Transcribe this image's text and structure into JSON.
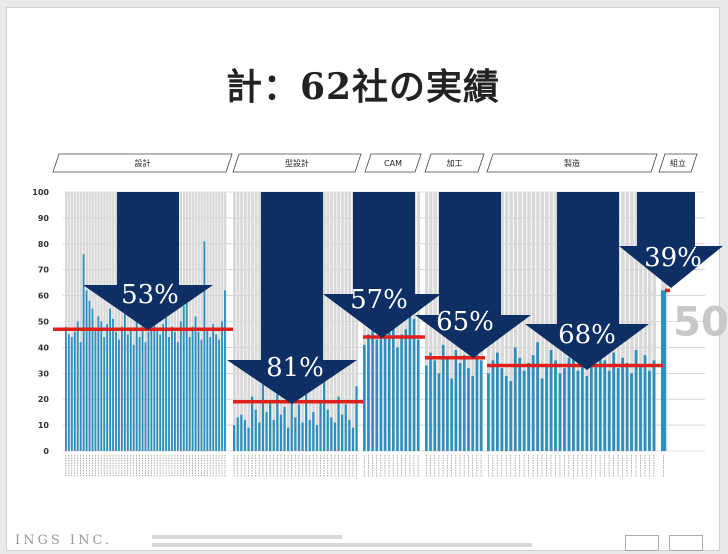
{
  "slide": {
    "title": "計：62社の実績",
    "logo": "INGS INC."
  },
  "colors": {
    "bar": "#2d8fbe",
    "arrow": "#0e2f63",
    "median_line": "#e0201a",
    "stripe": "#d8d8d8"
  },
  "chart_data": {
    "type": "bar",
    "ylim": [
      0,
      100
    ],
    "yticks": [
      0,
      10,
      20,
      30,
      40,
      50,
      60,
      70,
      80,
      90,
      100
    ],
    "right_label": "50",
    "groups": [
      {
        "name": "設計",
        "percent": "53%",
        "line_value": 47,
        "values": [
          48,
          45,
          44,
          46,
          50,
          42,
          76,
          62,
          58,
          55,
          47,
          52,
          50,
          44,
          49,
          55,
          51,
          46,
          43,
          48,
          53,
          45,
          47,
          41,
          60,
          44,
          50,
          42,
          46,
          48,
          52,
          47,
          45,
          49,
          53,
          44,
          48,
          46,
          42,
          50,
          56,
          58,
          44,
          48,
          52,
          46,
          43,
          81,
          47,
          44,
          49,
          45,
          43,
          50,
          62
        ]
      },
      {
        "name": "型設計",
        "percent": "81%",
        "line_value": 19,
        "values": [
          10,
          13,
          14,
          12,
          9,
          21,
          16,
          11,
          26,
          15,
          19,
          12,
          22,
          14,
          17,
          9,
          20,
          13,
          18,
          11,
          24,
          12,
          15,
          10,
          19,
          27,
          16,
          13,
          11,
          21,
          14,
          18,
          12,
          9,
          25
        ]
      },
      {
        "name": "CAM",
        "percent": "57%",
        "line_value": 44,
        "values": [
          41,
          45,
          50,
          43,
          48,
          44,
          49,
          52,
          40,
          45,
          47,
          55,
          51,
          43
        ]
      },
      {
        "name": "加工",
        "percent": "65%",
        "line_value": 36,
        "values": [
          33,
          38,
          35,
          30,
          41,
          36,
          28,
          39,
          34,
          37,
          32,
          29,
          38,
          35
        ]
      },
      {
        "name": "製造",
        "percent": "68%",
        "line_value": 33,
        "values": [
          30,
          35,
          38,
          32,
          29,
          27,
          40,
          36,
          31,
          34,
          37,
          42,
          28,
          33,
          39,
          35,
          30,
          32,
          36,
          38,
          31,
          34,
          29,
          37,
          33,
          40,
          35,
          31,
          38,
          32,
          36,
          34,
          30,
          39,
          33,
          37,
          31,
          35
        ]
      },
      {
        "name": "組立",
        "percent": "39%",
        "line_value": 62,
        "values": [
          62
        ]
      }
    ]
  }
}
